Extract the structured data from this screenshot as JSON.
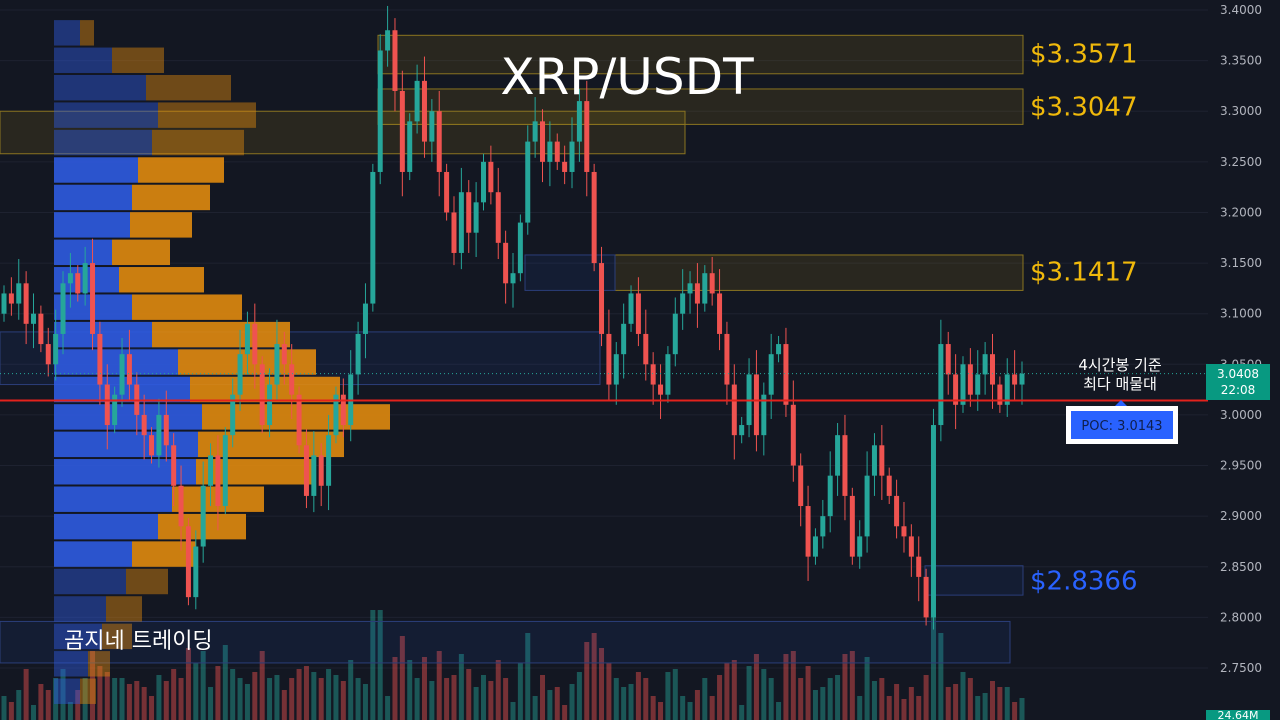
{
  "title": "XRP/USDT",
  "watermark": "곰지네 트레이딩",
  "poc_note": {
    "line1": "4시간봉 기준",
    "line2": "최다 매물대"
  },
  "poc_label": "POC: 3.0143",
  "price_tag": {
    "price": "3.0408",
    "time": "22:08"
  },
  "volume_tag": "24.64M",
  "colors": {
    "background": "#131722",
    "up": "#26a69a",
    "down": "#ef5350",
    "level_text": "#f0b90b",
    "support_text": "#2962ff",
    "profile_buy": "#2f5be0",
    "profile_sell": "#e08a0e",
    "poc_line": "#e3221c",
    "tag_green": "#089981"
  },
  "chart_data": {
    "type": "candlestick",
    "title": "XRP/USDT",
    "timeframe_note": "4시간봉 기준",
    "ylim": [
      2.72,
      3.41
    ],
    "y_ticks": [
      "3.4000",
      "3.3500",
      "3.3000",
      "3.2500",
      "3.2000",
      "3.1500",
      "3.1000",
      "3.0500",
      "3.0000",
      "2.9500",
      "2.9000",
      "2.8500",
      "2.8000",
      "2.7500"
    ],
    "current_price": 3.0408,
    "poc": 3.0143,
    "levels": [
      {
        "label": "$3.3571",
        "value": 3.3571,
        "color": "#f0b90b"
      },
      {
        "label": "$3.3047",
        "value": 3.3047,
        "color": "#f0b90b"
      },
      {
        "label": "$3.1417",
        "value": 3.1417,
        "color": "#f0b90b"
      },
      {
        "label": "$2.8366",
        "value": 2.8366,
        "color": "#2962ff"
      }
    ],
    "candles_close": [
      3.12,
      3.11,
      3.13,
      3.09,
      3.1,
      3.07,
      3.05,
      3.08,
      3.13,
      3.14,
      3.12,
      3.15,
      3.08,
      3.03,
      2.99,
      3.02,
      3.06,
      3.03,
      3.0,
      2.98,
      2.96,
      3.0,
      2.97,
      2.93,
      2.89,
      2.82,
      2.87,
      2.93,
      2.96,
      2.91,
      2.98,
      3.02,
      3.06,
      3.09,
      3.05,
      2.99,
      3.03,
      3.07,
      3.05,
      3.02,
      2.97,
      2.92,
      2.96,
      2.93,
      2.98,
      3.02,
      2.99,
      3.04,
      3.08,
      3.11,
      3.24,
      3.36,
      3.38,
      3.32,
      3.24,
      3.29,
      3.33,
      3.27,
      3.3,
      3.24,
      3.2,
      3.16,
      3.22,
      3.18,
      3.21,
      3.25,
      3.22,
      3.17,
      3.13,
      3.14,
      3.19,
      3.27,
      3.29,
      3.25,
      3.27,
      3.25,
      3.24,
      3.27,
      3.31,
      3.24,
      3.15,
      3.08,
      3.03,
      3.06,
      3.09,
      3.12,
      3.08,
      3.05,
      3.03,
      3.02,
      3.06,
      3.1,
      3.12,
      3.13,
      3.11,
      3.14,
      3.12,
      3.08,
      3.03,
      2.98,
      2.99,
      3.04,
      2.98,
      3.02,
      3.06,
      3.07,
      3.01,
      2.95,
      2.91,
      2.86,
      2.88,
      2.9,
      2.94,
      2.98,
      2.92,
      2.86,
      2.88,
      2.94,
      2.97,
      2.94,
      2.92,
      2.89,
      2.88,
      2.86,
      2.84,
      2.8,
      2.99,
      3.07,
      3.04,
      3.01,
      3.05,
      3.02,
      3.04,
      3.06,
      3.03,
      3.01,
      3.04,
      3.03,
      3.0408
    ],
    "volume_profile": {
      "price_start": 3.39,
      "bin_size": 0.0271,
      "buy": [
        26,
        58,
        92,
        104,
        98,
        84,
        78,
        76,
        58,
        65,
        78,
        98,
        124,
        136,
        148,
        144,
        142,
        118,
        104,
        78,
        72,
        52,
        48,
        34,
        26
      ],
      "sell": [
        14,
        52,
        85,
        98,
        92,
        86,
        78,
        62,
        58,
        85,
        110,
        138,
        138,
        150,
        188,
        146,
        116,
        92,
        88,
        64,
        42,
        36,
        30,
        22,
        16
      ]
    }
  }
}
